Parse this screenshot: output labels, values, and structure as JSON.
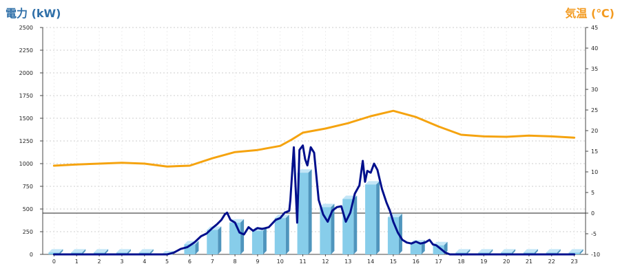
{
  "chart_data": {
    "type": "bar+line",
    "title_left": "電力 (kW)",
    "title_right": "気温 (℃)",
    "categories": [
      "0",
      "1",
      "2",
      "3",
      "4",
      "5",
      "6",
      "7",
      "8",
      "9",
      "10",
      "11",
      "12",
      "13",
      "14",
      "15",
      "16",
      "17",
      "18",
      "19",
      "20",
      "21",
      "22",
      "23"
    ],
    "y_left": {
      "min": 0,
      "max": 2500,
      "ticks": [
        0,
        250,
        500,
        750,
        1000,
        1250,
        1500,
        1750,
        2000,
        2250,
        2500
      ]
    },
    "y_right": {
      "min": -10,
      "max": 45,
      "ticks": [
        -10,
        -5,
        0,
        5,
        10,
        15,
        20,
        25,
        30,
        35,
        40,
        45
      ]
    },
    "reference_line_right": 0,
    "grid": true,
    "series": [
      {
        "kind": "bar",
        "axis": "left",
        "values": [
          20,
          20,
          20,
          20,
          20,
          0,
          110,
          270,
          350,
          260,
          400,
          900,
          520,
          610,
          770,
          410,
          120,
          100,
          20,
          20,
          20,
          20,
          20,
          20
        ]
      },
      {
        "kind": "line",
        "axis": "left",
        "color": "#000f8c",
        "x": [
          0,
          1,
          2,
          3,
          4,
          5,
          5.3,
          5.6,
          5.9,
          6.2,
          6.5,
          6.75,
          7.0,
          7.2,
          7.4,
          7.55,
          7.65,
          7.8,
          8.0,
          8.2,
          8.4,
          8.6,
          8.8,
          9.0,
          9.2,
          9.5,
          9.8,
          10.0,
          10.2,
          10.4,
          10.45,
          10.6,
          10.75,
          10.85,
          11.0,
          11.1,
          11.2,
          11.35,
          11.5,
          11.7,
          11.9,
          12.1,
          12.3,
          12.5,
          12.7,
          12.9,
          13.1,
          13.3,
          13.5,
          13.65,
          13.75,
          13.85,
          14.0,
          14.15,
          14.3,
          14.5,
          14.7,
          14.85,
          15.0,
          15.2,
          15.4,
          15.6,
          15.8,
          16.0,
          16.2,
          16.4,
          16.6,
          16.75,
          16.9,
          17.1,
          17.3,
          17.5,
          18,
          19,
          20,
          21,
          22,
          23
        ],
        "y": [
          0,
          0,
          0,
          0,
          0,
          0,
          20,
          60,
          80,
          130,
          200,
          230,
          290,
          330,
          380,
          440,
          460,
          380,
          350,
          240,
          220,
          300,
          260,
          290,
          280,
          300,
          380,
          400,
          460,
          480,
          600,
          1180,
          350,
          1150,
          1200,
          1050,
          980,
          1180,
          1120,
          600,
          440,
          360,
          480,
          520,
          530,
          360,
          460,
          670,
          760,
          1030,
          800,
          920,
          900,
          1000,
          930,
          720,
          570,
          480,
          360,
          240,
          160,
          130,
          120,
          140,
          120,
          130,
          160,
          110,
          100,
          60,
          20,
          0,
          0,
          0,
          0,
          0,
          0,
          0
        ]
      },
      {
        "kind": "line",
        "axis": "right",
        "color": "#f5a30f",
        "x": [
          0,
          1,
          2,
          3,
          4,
          5,
          6,
          7,
          8,
          9,
          10,
          10.5,
          11,
          12,
          13,
          14,
          15,
          16,
          17,
          18,
          19,
          20,
          21,
          22,
          23
        ],
        "y": [
          11.5,
          11.8,
          12.0,
          12.2,
          12.0,
          11.3,
          11.5,
          13.3,
          14.8,
          15.3,
          16.3,
          17.8,
          19.5,
          20.5,
          21.8,
          23.5,
          24.8,
          23.3,
          21.0,
          19.0,
          18.6,
          18.5,
          18.8,
          18.6,
          18.3
        ]
      }
    ]
  }
}
